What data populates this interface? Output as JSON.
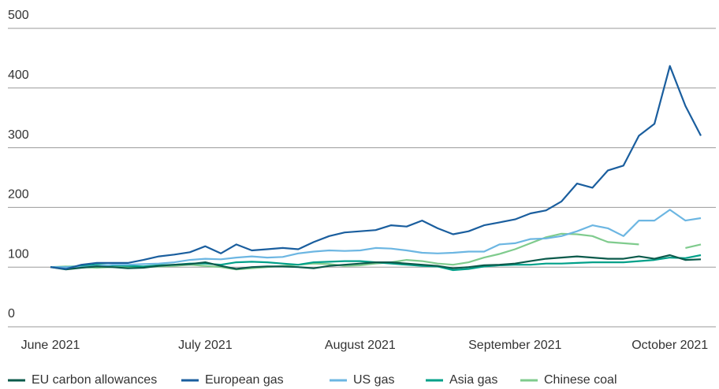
{
  "chart_data": {
    "type": "line",
    "categories": [
      "June 2021",
      null,
      null,
      null,
      null,
      null,
      null,
      null,
      null,
      null,
      "July 2021",
      null,
      null,
      null,
      null,
      null,
      null,
      null,
      null,
      null,
      "August 2021",
      null,
      null,
      null,
      null,
      null,
      null,
      null,
      null,
      null,
      "September 2021",
      null,
      null,
      null,
      null,
      null,
      null,
      null,
      null,
      null,
      "October 2021",
      null,
      null
    ],
    "ylim": [
      0,
      500
    ],
    "yticks": [
      0,
      100,
      200,
      300,
      400,
      500
    ],
    "grid": true,
    "legend": "bottom",
    "series": [
      {
        "name": "EU carbon allowances",
        "color": "#0b5a4b",
        "values": [
          100,
          96,
          99,
          101,
          100,
          98,
          99,
          102,
          104,
          105,
          108,
          102,
          97,
          100,
          101,
          101,
          100,
          98,
          102,
          104,
          106,
          108,
          108,
          106,
          104,
          102,
          98,
          100,
          103,
          104,
          106,
          110,
          114,
          116,
          118,
          116,
          114,
          114,
          118,
          114,
          120,
          112,
          113
        ]
      },
      {
        "name": "European gas",
        "color": "#1a5e9e",
        "values": [
          100,
          97,
          104,
          107,
          107,
          107,
          112,
          118,
          121,
          125,
          135,
          123,
          138,
          128,
          130,
          132,
          130,
          142,
          152,
          158,
          160,
          162,
          170,
          168,
          178,
          165,
          155,
          160,
          170,
          175,
          180,
          190,
          195,
          210,
          240,
          233,
          262,
          270,
          320,
          340,
          437,
          370,
          320
        ]
      },
      {
        "name": "US gas",
        "color": "#6cb6e2",
        "values": [
          100,
          100,
          100,
          102,
          104,
          104,
          105,
          106,
          108,
          112,
          114,
          113,
          116,
          118,
          116,
          117,
          123,
          126,
          128,
          127,
          128,
          132,
          131,
          128,
          124,
          123,
          124,
          126,
          126,
          138,
          140,
          147,
          148,
          152,
          160,
          170,
          165,
          152,
          178,
          178,
          196,
          178,
          182
        ]
      },
      {
        "name": "Asia gas",
        "color": "#00a089",
        "values": [
          100,
          100,
          102,
          104,
          103,
          102,
          101,
          103,
          104,
          106,
          106,
          104,
          108,
          109,
          108,
          106,
          104,
          108,
          109,
          110,
          110,
          108,
          106,
          104,
          102,
          101,
          95,
          97,
          101,
          103,
          104,
          104,
          106,
          106,
          107,
          108,
          108,
          108,
          110,
          112,
          116,
          115,
          120
        ]
      },
      {
        "name": "Chinese coal",
        "color": "#7fcb8d",
        "values": [
          100,
          101,
          100,
          99,
          100,
          100,
          100,
          101,
          102,
          104,
          102,
          100,
          96,
          98,
          100,
          102,
          104,
          106,
          105,
          102,
          103,
          106,
          108,
          112,
          110,
          106,
          104,
          108,
          116,
          122,
          130,
          140,
          150,
          156,
          155,
          152,
          142,
          140,
          138,
          null,
          null,
          132,
          138
        ]
      }
    ]
  }
}
